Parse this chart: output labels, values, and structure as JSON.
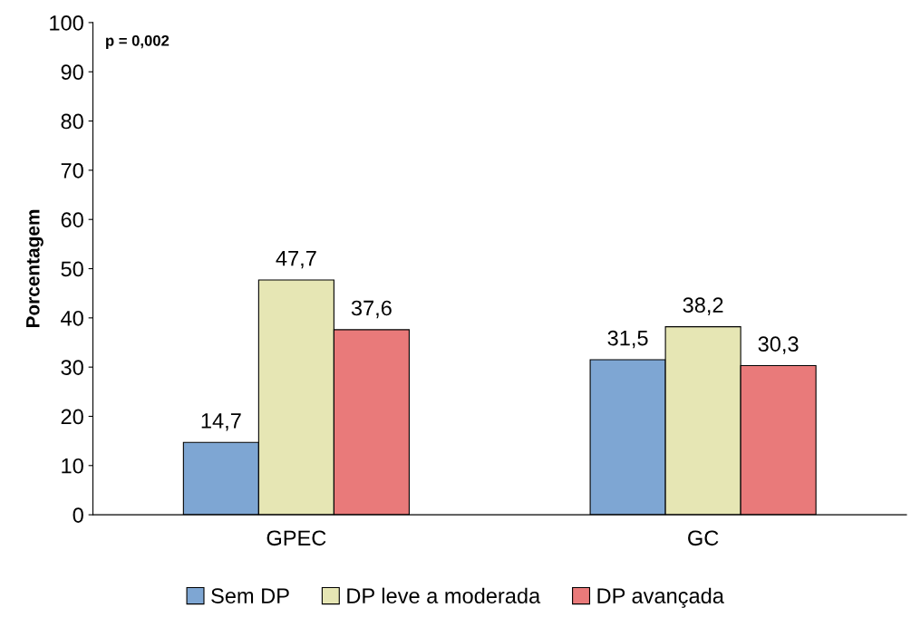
{
  "chart_data": {
    "type": "bar",
    "ylabel": "Porcentagem",
    "categories": [
      "GPEC",
      "GC"
    ],
    "series": [
      {
        "name": "Sem DP",
        "color": "#7ea6d3",
        "values": [
          14.7,
          31.5
        ],
        "value_labels": [
          "14,7",
          "31,5"
        ]
      },
      {
        "name": "DP leve a moderada",
        "color": "#e6e6b4",
        "values": [
          47.7,
          38.2
        ],
        "value_labels": [
          "47,7",
          "38,2"
        ]
      },
      {
        "name": "DP avançada",
        "color": "#e97a7a",
        "values": [
          37.6,
          30.3
        ],
        "value_labels": [
          "37,6",
          "30,3"
        ]
      }
    ],
    "ylim": [
      0,
      100
    ],
    "yticks": [
      0,
      10,
      20,
      30,
      40,
      50,
      60,
      70,
      80,
      90,
      100
    ],
    "annotations": [
      "p = 0,002"
    ],
    "legend": "bottom",
    "grid": false
  }
}
